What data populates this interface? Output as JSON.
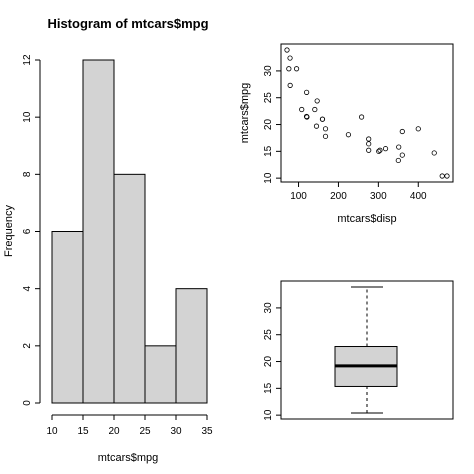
{
  "chart_data": [
    {
      "type": "bar",
      "title": "Histogram of mtcars$mpg",
      "xlabel": "mtcars$mpg",
      "ylabel": "Frequency",
      "bins": [
        {
          "from": 10,
          "to": 15,
          "count": 6
        },
        {
          "from": 15,
          "to": 20,
          "count": 12
        },
        {
          "from": 20,
          "to": 25,
          "count": 8
        },
        {
          "from": 25,
          "to": 30,
          "count": 2
        },
        {
          "from": 30,
          "to": 35,
          "count": 4
        }
      ],
      "xticks": [
        10,
        15,
        20,
        25,
        30,
        35
      ],
      "yticks": [
        0,
        2,
        4,
        6,
        8,
        10,
        12
      ],
      "xlim": [
        10,
        35
      ],
      "ylim": [
        0,
        12
      ],
      "bar_color": "#d3d3d3"
    },
    {
      "type": "scatter",
      "xlabel": "mtcars$disp",
      "ylabel": "mtcars$mpg",
      "xticks": [
        100,
        200,
        300,
        400
      ],
      "yticks": [
        10,
        15,
        20,
        25,
        30
      ],
      "xlim": [
        71.1,
        472
      ],
      "ylim": [
        10.4,
        33.9
      ],
      "points": [
        [
          160,
          21.0
        ],
        [
          160,
          21.0
        ],
        [
          108,
          22.8
        ],
        [
          258,
          21.4
        ],
        [
          360,
          18.7
        ],
        [
          225,
          18.1
        ],
        [
          360,
          14.3
        ],
        [
          146.7,
          24.4
        ],
        [
          140.8,
          22.8
        ],
        [
          167.6,
          19.2
        ],
        [
          167.6,
          17.8
        ],
        [
          275.8,
          16.4
        ],
        [
          275.8,
          17.3
        ],
        [
          275.8,
          15.2
        ],
        [
          472,
          10.4
        ],
        [
          460,
          10.4
        ],
        [
          440,
          14.7
        ],
        [
          78.7,
          32.4
        ],
        [
          75.7,
          30.4
        ],
        [
          71.1,
          33.9
        ],
        [
          120.1,
          21.5
        ],
        [
          318,
          15.5
        ],
        [
          304,
          15.2
        ],
        [
          350,
          13.3
        ],
        [
          400,
          19.2
        ],
        [
          79,
          27.3
        ],
        [
          120.3,
          26.0
        ],
        [
          95.1,
          30.4
        ],
        [
          351,
          15.8
        ],
        [
          145,
          19.7
        ],
        [
          301,
          15.0
        ],
        [
          121,
          21.4
        ]
      ]
    },
    {
      "type": "box",
      "yticks": [
        10,
        15,
        20,
        25,
        30
      ],
      "ylim": [
        10.4,
        33.9
      ],
      "min": 10.4,
      "q1": 15.35,
      "median": 19.2,
      "q3": 22.8,
      "max": 33.9,
      "box_color": "#d3d3d3"
    }
  ]
}
